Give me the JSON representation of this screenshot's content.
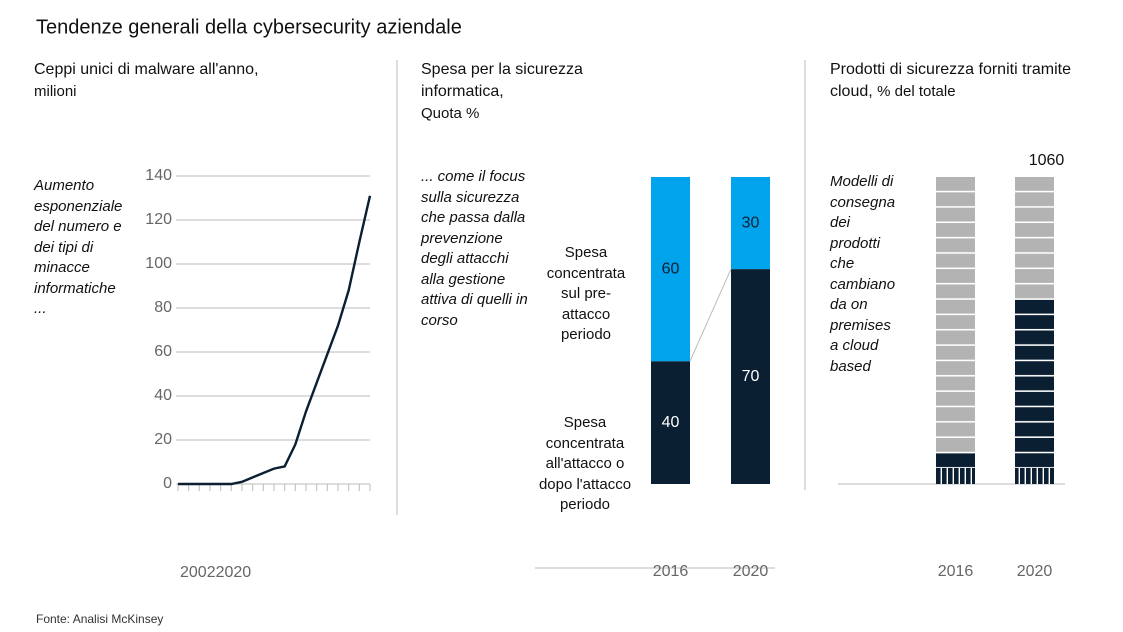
{
  "title": "Tendenze generali della cybersecurity aziendale",
  "source": "Fonte: Analisi McKinsey",
  "chart_data": [
    {
      "type": "line",
      "title": "Ceppi unici di malware all'anno,",
      "subtitle": "milioni",
      "annotation": "Aumento esponenziale del numero e dei tipi di minacce informatiche ...",
      "x": [
        2002,
        2003,
        2004,
        2005,
        2006,
        2007,
        2008,
        2009,
        2010,
        2011,
        2012,
        2013,
        2014,
        2015,
        2016,
        2017,
        2018,
        2019,
        2020
      ],
      "values": [
        0,
        0,
        0,
        0,
        0,
        0,
        1,
        3,
        5,
        7,
        8,
        18,
        33,
        46,
        59,
        72,
        88,
        110,
        131
      ],
      "color": "#0b1f33",
      "xlim": [
        2002,
        2020
      ],
      "xticks": [
        2002,
        2020
      ],
      "ylim": [
        0,
        140
      ],
      "yticks": [
        0,
        20,
        40,
        60,
        80,
        100,
        120,
        140
      ],
      "grid": true
    },
    {
      "type": "stacked-bar",
      "title": "Spesa per la sicurezza informatica,",
      "subtitle": "Quota %",
      "annotation": "... come il focus sulla sicurezza che passa dalla prevenzione degli attacchi alla gestione attiva di quelli in corso",
      "categories": [
        "2016",
        "2020"
      ],
      "series": [
        {
          "name": "Spesa concentrata all'attacco o dopo l'attacco periodo",
          "color": "#0b1f33",
          "values": [
            40,
            70
          ]
        },
        {
          "name": "Spesa concentrata sul pre-attacco periodo",
          "color": "#00a3ec",
          "values": [
            60,
            30
          ]
        }
      ],
      "value_labels_shown": true
    },
    {
      "type": "stacked-bar",
      "title": "Prodotti di sicurezza forniti tramite cloud,",
      "subtitle": "% del totale",
      "annotation": "Modelli di consegna dei prodotti che cambiano da on premises a cloud based",
      "top_label": "1060",
      "categories": [
        "2016",
        "2020"
      ],
      "series": [
        {
          "color": "#0b1f33",
          "values": [
            10,
            60
          ]
        },
        {
          "color": "#b3b3b3",
          "values": [
            90,
            40
          ]
        }
      ],
      "value_labels_shown": false
    }
  ]
}
